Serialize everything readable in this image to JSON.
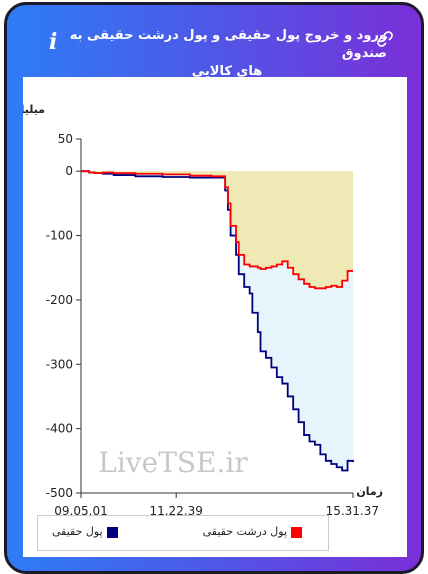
{
  "header": {
    "title_line1": "ورود و خروج پول حقیقی و پول درشت حقیقی به صندوق",
    "title_line2": "های کالایی",
    "info_icon": "info-icon",
    "link_icon": "link-icon"
  },
  "watermark": "LiveTSE.ir",
  "legend": {
    "real_money": "پول حقیقی",
    "big_real_money": "پول درشت حقیقی"
  },
  "colors": {
    "real_money": "#00007f",
    "big_real_money": "#ff0000",
    "area_big": "#efeab5",
    "area_real": "#e6f4fb",
    "accent_left": "#2f7cf6",
    "accent_right": "#7a2fd8"
  },
  "chart_data": {
    "type": "line",
    "ylabel": "میلیارد تومان",
    "xlabel": "زمان",
    "ylim": [
      -500,
      50
    ],
    "yticks": [
      50,
      0,
      -100,
      -200,
      -300,
      -400,
      -500
    ],
    "xtick_labels": [
      "09.05.01",
      "11.22.39",
      "15.31.37"
    ],
    "xlim": [
      0,
      100
    ],
    "xticks": [
      0,
      35,
      100
    ],
    "series": [
      {
        "name": "پول حقیقی",
        "x": [
          0,
          3,
          5,
          8,
          12,
          20,
          30,
          40,
          48,
          52,
          53,
          54,
          55,
          57,
          58,
          60,
          62,
          63,
          65,
          66,
          68,
          70,
          72,
          74,
          76,
          78,
          80,
          82,
          84,
          86,
          88,
          90,
          92,
          94,
          96,
          98,
          100
        ],
        "y": [
          0,
          -2,
          -3,
          -4,
          -6,
          -8,
          -9,
          -10,
          -10,
          -10,
          -30,
          -60,
          -100,
          -130,
          -160,
          -180,
          -190,
          -220,
          -250,
          -280,
          -290,
          -305,
          -320,
          -330,
          -350,
          -370,
          -390,
          -410,
          -420,
          -425,
          -440,
          -450,
          -455,
          -460,
          -465,
          -450,
          -452
        ]
      },
      {
        "name": "پول درشت حقیقی",
        "x": [
          0,
          3,
          5,
          8,
          12,
          20,
          30,
          40,
          48,
          52,
          53,
          54,
          55,
          57,
          58,
          60,
          62,
          63,
          65,
          66,
          68,
          70,
          72,
          74,
          76,
          78,
          80,
          82,
          84,
          86,
          88,
          90,
          92,
          94,
          96,
          98,
          100
        ],
        "y": [
          0,
          -2,
          -3,
          -2,
          -3,
          -4,
          -5,
          -7,
          -8,
          -8,
          -25,
          -50,
          -85,
          -110,
          -130,
          -145,
          -148,
          -148,
          -150,
          -152,
          -150,
          -148,
          -145,
          -140,
          -150,
          -160,
          -168,
          -175,
          -180,
          -182,
          -182,
          -180,
          -178,
          -180,
          -170,
          -155,
          -155
        ]
      }
    ],
    "legend_position": "bottom",
    "grid": false
  }
}
